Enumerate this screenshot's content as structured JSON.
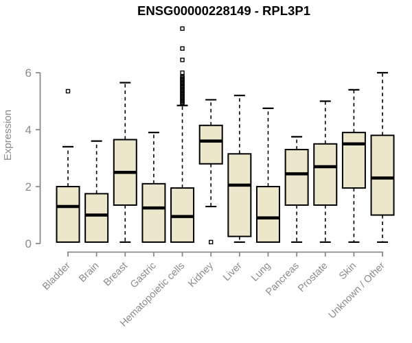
{
  "chart_data": {
    "type": "boxplot",
    "title": "ENSG00000228149 - RPL3P1",
    "ylabel": "Expression",
    "xlabel": "",
    "yticks": [
      0,
      2,
      4,
      6
    ],
    "ylim": [
      0,
      7.8
    ],
    "grid": false,
    "legend": "none",
    "colors": {
      "box_fill": "#ECE7CB",
      "box_stroke": "#000000",
      "median": "#000000",
      "axis": "#8A8A8A",
      "tick_label": "#8A8A8A",
      "title": "#000000",
      "background": "#FFFFFF"
    },
    "categories": [
      "Bladder",
      "Brain",
      "Breast",
      "Gastric",
      "Hematopoietic cells",
      "Kidney",
      "Liver",
      "Lung",
      "Pancreas",
      "Prostate",
      "Skin",
      "Unknown / Other"
    ],
    "boxes": [
      {
        "category": "Bladder",
        "whisker_low": 0.05,
        "q1": 0.05,
        "median": 1.3,
        "q3": 2.0,
        "whisker_high": 3.4,
        "outliers": [
          5.35
        ]
      },
      {
        "category": "Brain",
        "whisker_low": 0.05,
        "q1": 0.05,
        "median": 1.0,
        "q3": 1.75,
        "whisker_high": 3.6,
        "outliers": []
      },
      {
        "category": "Breast",
        "whisker_low": 0.05,
        "q1": 1.35,
        "median": 2.5,
        "q3": 3.65,
        "whisker_high": 5.65,
        "outliers": []
      },
      {
        "category": "Gastric",
        "whisker_low": 0.05,
        "q1": 0.05,
        "median": 1.25,
        "q3": 2.1,
        "whisker_high": 3.9,
        "outliers": []
      },
      {
        "category": "Hematopoietic cells",
        "whisker_low": 0.05,
        "q1": 0.05,
        "median": 0.95,
        "q3": 1.95,
        "whisker_high": 4.85,
        "outliers": [
          4.9,
          4.94,
          4.98,
          5.02,
          5.06,
          5.1,
          5.14,
          5.18,
          5.22,
          5.26,
          5.3,
          5.34,
          5.38,
          5.42,
          5.46,
          5.5,
          5.54,
          5.58,
          5.62,
          5.66,
          5.7,
          5.74,
          5.78,
          5.82,
          5.86,
          6.0,
          6.45,
          6.85,
          7.55
        ]
      },
      {
        "category": "Kidney",
        "whisker_low": 1.3,
        "q1": 2.8,
        "median": 3.6,
        "q3": 4.15,
        "whisker_high": 5.05,
        "outliers": [
          0.05
        ]
      },
      {
        "category": "Liver",
        "whisker_low": 0.05,
        "q1": 0.25,
        "median": 2.05,
        "q3": 3.15,
        "whisker_high": 5.2,
        "outliers": []
      },
      {
        "category": "Lung",
        "whisker_low": 0.05,
        "q1": 0.05,
        "median": 0.9,
        "q3": 2.0,
        "whisker_high": 4.75,
        "outliers": []
      },
      {
        "category": "Pancreas",
        "whisker_low": 0.05,
        "q1": 1.35,
        "median": 2.45,
        "q3": 3.3,
        "whisker_high": 3.75,
        "outliers": []
      },
      {
        "category": "Prostate",
        "whisker_low": 0.05,
        "q1": 1.35,
        "median": 2.7,
        "q3": 3.5,
        "whisker_high": 5.0,
        "outliers": []
      },
      {
        "category": "Skin",
        "whisker_low": 0.05,
        "q1": 1.95,
        "median": 3.5,
        "q3": 3.9,
        "whisker_high": 5.4,
        "outliers": []
      },
      {
        "category": "Unknown / Other",
        "whisker_low": 0.05,
        "q1": 1.0,
        "median": 2.3,
        "q3": 3.8,
        "whisker_high": 6.0,
        "outliers": []
      }
    ]
  }
}
